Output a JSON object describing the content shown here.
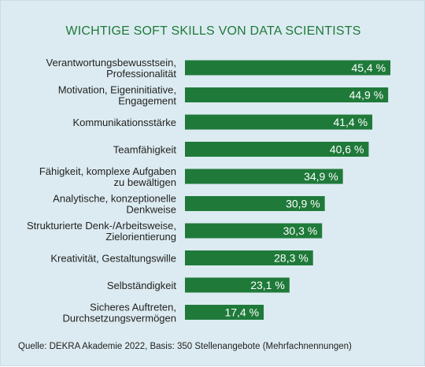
{
  "title": "WICHTIGE SOFT SKILLS VON DATA SCIENTISTS",
  "source": "Quelle: DEKRA Akademie 2022, Basis: 350 Stellenangebote (Mehrfachnennungen)",
  "colors": {
    "background": "#dcebf1",
    "bar": "#1f7a3a",
    "title": "#1f7a3a",
    "label": "#222222",
    "bar_text": "#ffffff"
  },
  "chart_data": {
    "type": "bar",
    "orientation": "horizontal",
    "title": "WICHTIGE SOFT SKILLS VON DATA SCIENTISTS",
    "categories": [
      [
        "Verantwortungsbewusstsein,",
        "Professionalität"
      ],
      [
        "Motivation, Eigeninitiative,",
        "Engagement"
      ],
      [
        "Kommunikationsstärke"
      ],
      [
        "Teamfähigkeit"
      ],
      [
        "Fähigkeit, komplexe Aufgaben",
        "zu bewältigen"
      ],
      [
        "Analytische, konzeptionelle",
        "Denkweise"
      ],
      [
        "Strukturierte Denk-/Arbeitsweise,",
        "Zielorientierung"
      ],
      [
        "Kreativität, Gestaltungswille"
      ],
      [
        "Selbständigkeit"
      ],
      [
        "Sicheres Auftreten,",
        "Durchsetzungsvermögen"
      ]
    ],
    "values": [
      45.4,
      44.9,
      41.4,
      40.6,
      34.9,
      30.9,
      30.3,
      28.3,
      23.1,
      17.4
    ],
    "value_labels": [
      "45,4 %",
      "44,9 %",
      "41,4 %",
      "40,6 %",
      "34,9 %",
      "30,9 %",
      "30,3 %",
      "28,3 %",
      "23,1 %",
      "17,4 %"
    ],
    "xlabel": "",
    "ylabel": "",
    "grid": false,
    "legend": "none"
  }
}
